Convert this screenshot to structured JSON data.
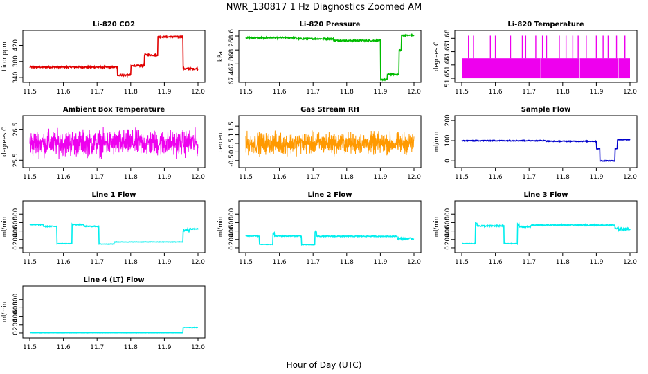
{
  "title": "NWR_130817  1 Hz Diagnostics Zoomed AM",
  "xlabel": "Hour of Day (UTC)",
  "chart_data": [
    {
      "id": "co2",
      "type": "line",
      "title": "Li-820 CO2",
      "ylabel": "Licor ppm",
      "color": "#e00000",
      "xlim": [
        11.5,
        12.0
      ],
      "ylim": [
        335,
        450
      ],
      "yticks": [
        340,
        380,
        420
      ],
      "xticks": [
        11.5,
        11.6,
        11.7,
        11.8,
        11.9,
        12.0
      ],
      "segments": [
        [
          11.5,
          11.76,
          366,
          2
        ],
        [
          11.76,
          11.8,
          346,
          2
        ],
        [
          11.8,
          11.84,
          369,
          2
        ],
        [
          11.84,
          11.88,
          396,
          2
        ],
        [
          11.88,
          11.955,
          441,
          2
        ],
        [
          11.955,
          12.0,
          362,
          2
        ]
      ]
    },
    {
      "id": "pressure",
      "type": "line",
      "title": "Li-820 Pressure",
      "ylabel": "kPa",
      "color": "#00bb00",
      "xlim": [
        11.5,
        12.0
      ],
      "ylim": [
        67.35,
        68.68
      ],
      "yticks": [
        67.4,
        67.8,
        68.2,
        68.6
      ],
      "xticks": [
        11.5,
        11.6,
        11.7,
        11.8,
        11.9,
        12.0
      ],
      "segments": [
        [
          11.5,
          11.65,
          68.55,
          0.02
        ],
        [
          11.65,
          11.76,
          68.52,
          0.02
        ],
        [
          11.76,
          11.9,
          68.47,
          0.02
        ],
        [
          11.9,
          11.92,
          67.35,
          0.02
        ],
        [
          11.92,
          11.955,
          67.5,
          0.02
        ],
        [
          11.955,
          11.962,
          68.2,
          0.02
        ],
        [
          11.962,
          12.0,
          68.62,
          0.02
        ]
      ]
    },
    {
      "id": "temp",
      "type": "line",
      "title": "Li-820 Temperature",
      "ylabel": "degrees C",
      "color": "#ee00ee",
      "xlim": [
        11.5,
        12.0
      ],
      "ylim": [
        51.649,
        51.6838
      ],
      "yticks": [
        51.65,
        51.66,
        51.67,
        51.68
      ],
      "xticks": [
        11.5,
        11.6,
        11.7,
        11.8,
        11.9,
        12.0
      ],
      "band": [
        51.65,
        51.665
      ],
      "spike": 51.682,
      "spikes": [
        11.52,
        11.535,
        11.585,
        11.6,
        11.645,
        11.68,
        11.69,
        11.72,
        11.74,
        11.752,
        11.79,
        11.81,
        11.83,
        11.846,
        11.87,
        11.9,
        11.92,
        11.935,
        11.96,
        11.985
      ]
    },
    {
      "id": "boxtemp",
      "type": "line",
      "title": "Ambient Box Temperature",
      "ylabel": "degrees C",
      "color": "#ee00ee",
      "xlim": [
        11.5,
        12.0
      ],
      "ylim": [
        25.35,
        26.85
      ],
      "yticks": [
        25.5,
        26.5
      ],
      "xticks": [
        11.5,
        11.6,
        11.7,
        11.8,
        11.9,
        12.0
      ],
      "noise": [
        26.05,
        0.3
      ]
    },
    {
      "id": "rh",
      "type": "line",
      "title": "Gas Stream RH",
      "ylabel": "percent",
      "color": "#ff9900",
      "xlim": [
        11.5,
        12.0
      ],
      "ylim": [
        -0.75,
        1.95
      ],
      "yticks": [
        -0.5,
        0,
        0.5,
        1,
        1.5
      ],
      "xticks": [
        11.5,
        11.6,
        11.7,
        11.8,
        11.9,
        12.0
      ],
      "noise": [
        0.5,
        0.45
      ]
    },
    {
      "id": "sample",
      "type": "line",
      "title": "Sample Flow",
      "ylabel": "ml/min",
      "color": "#0000cc",
      "xlim": [
        11.5,
        12.0
      ],
      "ylim": [
        -20,
        210
      ],
      "yticks": [
        0,
        100,
        200
      ],
      "xticks": [
        11.5,
        11.6,
        11.7,
        11.8,
        11.9,
        12.0
      ],
      "segments": [
        [
          11.5,
          11.75,
          100,
          2
        ],
        [
          11.75,
          11.9,
          97,
          2
        ],
        [
          11.9,
          11.91,
          60,
          2
        ],
        [
          11.91,
          11.955,
          0,
          2
        ],
        [
          11.955,
          11.962,
          60,
          2
        ],
        [
          11.962,
          12.0,
          105,
          2
        ]
      ]
    },
    {
      "id": "line1",
      "type": "line",
      "title": "Line 1 Flow",
      "ylabel": "ml/min",
      "color": "#00eeee",
      "xlim": [
        11.5,
        12.0
      ],
      "ylim": [
        -50,
        1050
      ],
      "yticks": [
        0,
        200,
        400,
        600,
        800
      ],
      "xticks": [
        11.5,
        11.6,
        11.7,
        11.8,
        11.9,
        12.0
      ],
      "segments": [
        [
          11.5,
          11.54,
          550,
          10
        ],
        [
          11.54,
          11.58,
          510,
          10
        ],
        [
          11.58,
          11.625,
          100,
          5
        ],
        [
          11.625,
          11.66,
          550,
          10
        ],
        [
          11.66,
          11.705,
          510,
          10
        ],
        [
          11.705,
          11.75,
          90,
          5
        ],
        [
          11.75,
          11.955,
          140,
          5
        ],
        [
          11.955,
          11.975,
          420,
          30
        ],
        [
          11.975,
          12.0,
          450,
          15
        ]
      ]
    },
    {
      "id": "line2",
      "type": "line",
      "title": "Line 2 Flow",
      "ylabel": "ml/min",
      "color": "#00eeee",
      "xlim": [
        11.5,
        12.0
      ],
      "ylim": [
        -50,
        1050
      ],
      "yticks": [
        0,
        200,
        400,
        600,
        800
      ],
      "xticks": [
        11.5,
        11.6,
        11.7,
        11.8,
        11.9,
        12.0
      ],
      "segments": [
        [
          11.5,
          11.54,
          280,
          10
        ],
        [
          11.54,
          11.58,
          80,
          5
        ],
        [
          11.58,
          11.585,
          350,
          20
        ],
        [
          11.585,
          11.665,
          280,
          10
        ],
        [
          11.665,
          11.705,
          75,
          5
        ],
        [
          11.705,
          11.71,
          380,
          20
        ],
        [
          11.71,
          11.95,
          275,
          10
        ],
        [
          11.95,
          12.0,
          220,
          20
        ]
      ]
    },
    {
      "id": "line3",
      "type": "line",
      "title": "Line 3 Flow",
      "ylabel": "ml/min",
      "color": "#00eeee",
      "xlim": [
        11.5,
        12.0
      ],
      "ylim": [
        -50,
        1050
      ],
      "yticks": [
        0,
        200,
        400,
        600,
        800
      ],
      "xticks": [
        11.5,
        11.6,
        11.7,
        11.8,
        11.9,
        12.0
      ],
      "segments": [
        [
          11.5,
          11.54,
          100,
          5
        ],
        [
          11.54,
          11.545,
          600,
          20
        ],
        [
          11.545,
          11.625,
          520,
          15
        ],
        [
          11.625,
          11.665,
          100,
          5
        ],
        [
          11.665,
          11.67,
          560,
          20
        ],
        [
          11.67,
          11.705,
          500,
          15
        ],
        [
          11.705,
          11.955,
          540,
          12
        ],
        [
          11.955,
          12.0,
          450,
          30
        ]
      ]
    },
    {
      "id": "line4",
      "type": "line",
      "title": "Line 4 (LT) Flow",
      "ylabel": "ml/min",
      "color": "#00eeee",
      "xlim": [
        11.5,
        12.0
      ],
      "ylim": [
        -50,
        1050
      ],
      "yticks": [
        0,
        200,
        400,
        600,
        800
      ],
      "xticks": [
        11.5,
        11.6,
        11.7,
        11.8,
        11.9,
        12.0
      ],
      "segments": [
        [
          11.5,
          11.955,
          5,
          2
        ],
        [
          11.955,
          12.0,
          130,
          5
        ]
      ]
    }
  ]
}
